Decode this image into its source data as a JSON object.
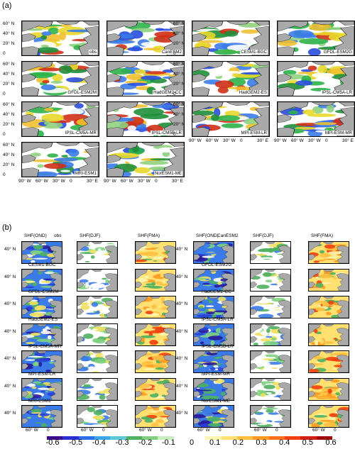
{
  "panel_a": {
    "label": "(a)",
    "lat_ticks": [
      "60° N",
      "40° N",
      "20° N",
      "0"
    ],
    "lon_ticks": [
      "90° W",
      "60° W",
      "30° W",
      "0",
      "30° E"
    ],
    "models": [
      "obs",
      "CanESM2",
      "CESM1-BGC",
      "GFDL-ESM2G",
      "GFDL-ESM2M",
      "HadGEM2-CC",
      "HadGEM2-ES",
      "IPSL-CM5A-LR",
      "IPSL-CM5A-MR",
      "IPSL-CM5B-LR",
      "MPI-ESM-LR",
      "MPI-ESM-MR",
      "MRI-ESM1",
      "NorESM1-ME"
    ]
  },
  "panel_b": {
    "label": "(b)",
    "lat_tick": "40° N",
    "lon_ticks": [
      "60° W",
      "0"
    ],
    "columns": [
      "SHF(OND)",
      "SHF(DJF)",
      "SHF(FMA)",
      "SHF(OND)",
      "SHF(DJF)",
      "SHF(FMA)"
    ],
    "rows_left": [
      "obs",
      "CESM1-BGC",
      "GFDL-ESM2M",
      "HadGEM2-ES",
      "IPSL-CM5A-MR",
      "MPI-ESM-LR",
      "MRI-ESM1"
    ],
    "rows_right": [
      "CanESM2",
      "GFDL-ESM2G",
      "HadGEM2-CC",
      "IPSL-CM5A-LR",
      "IPSL-CM5B-LR",
      "MPI-ESM-MR",
      "NorESM1-ME"
    ]
  },
  "colorbar": {
    "ticks": [
      "-0.6",
      "-0.5",
      "-0.4",
      "-0.3",
      "-0.2",
      "-0.1",
      "0",
      "0.1",
      "0.2",
      "0.3",
      "0.4",
      "0.5",
      "0.6"
    ],
    "min": -0.6,
    "max": 0.6,
    "colors": [
      "#3a0a8a",
      "#2b2fd0",
      "#2d6fe8",
      "#3aa6e8",
      "#5fc8d8",
      "#4fb060",
      "#7fd080",
      "#c8eec0",
      "#ffffff",
      "#ffffff",
      "#fff6b0",
      "#ffe070",
      "#ffc040",
      "#ff9a20",
      "#ff7018",
      "#f04010",
      "#d02010",
      "#a00a0a"
    ]
  }
}
